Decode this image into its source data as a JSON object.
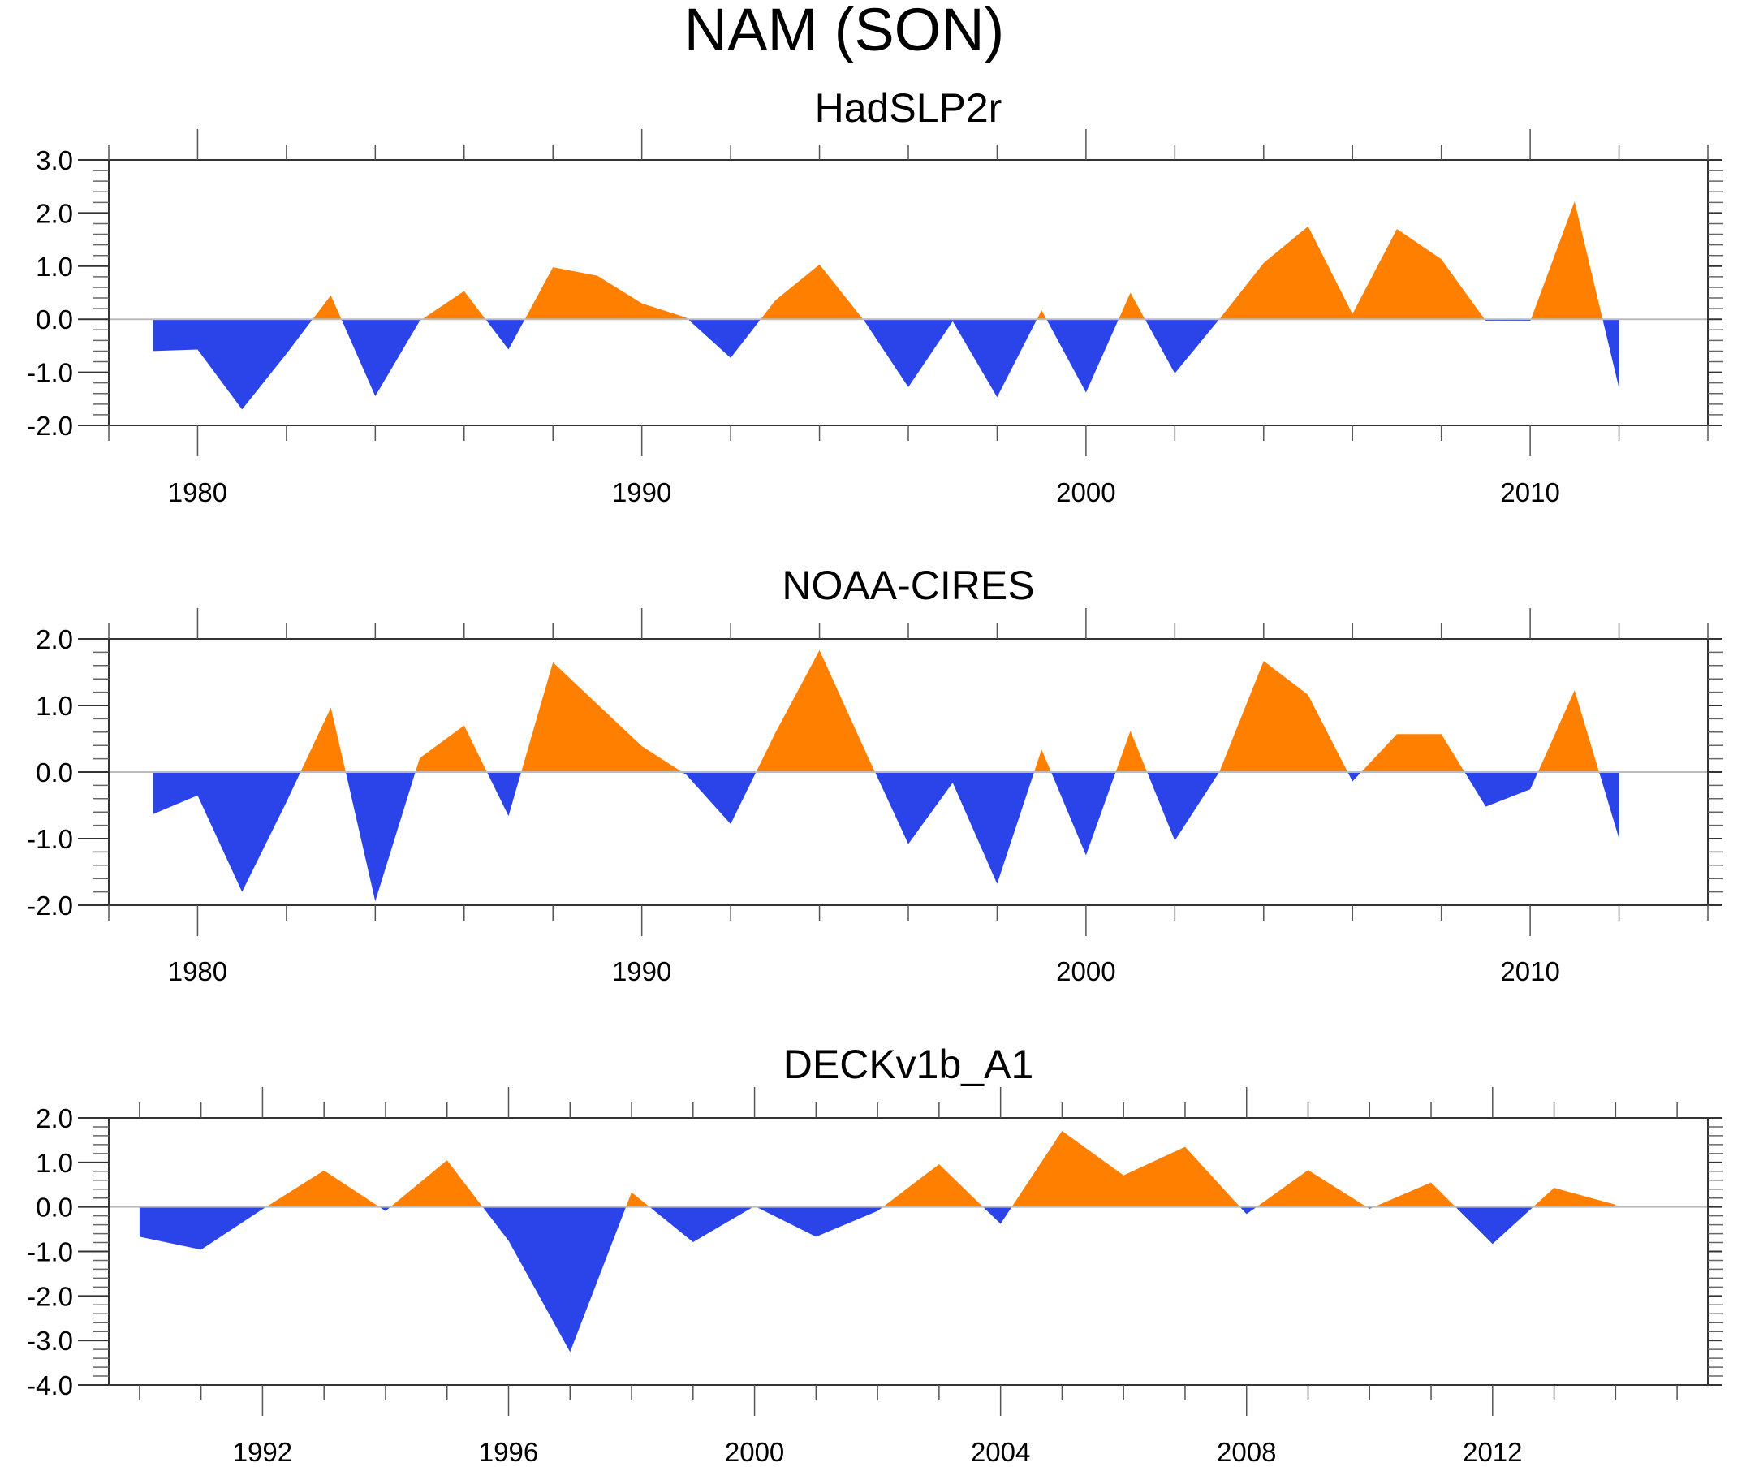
{
  "chart_data": {
    "title": "NAM (SON)",
    "colors": {
      "positive": "#ff8000",
      "negative": "#2a44ea",
      "axis": "#333333",
      "zero_line": "#bbbbbb"
    },
    "panels": [
      {
        "type": "area",
        "title": "HadSLP2r",
        "xlabel": "",
        "ylabel": "",
        "xlim": [
          1978,
          2014
        ],
        "ylim": [
          -2.0,
          3.0
        ],
        "yticks": [
          3.0,
          2.0,
          1.0,
          0.0,
          -1.0,
          -2.0
        ],
        "ytick_labels": [
          "3.0",
          "2.0",
          "1.0",
          "0.0",
          "-1.0",
          "-2.0"
        ],
        "y_minor_step": 0.2,
        "xticks_major": [
          1980,
          1990,
          2000,
          2010
        ],
        "xtick_labels": [
          "1980",
          "1990",
          "2000",
          "2010"
        ],
        "x_minor_step": 2,
        "x": [
          1979,
          1980,
          1981,
          1982,
          1983,
          1984,
          1985,
          1986,
          1987,
          1988,
          1989,
          1990,
          1991,
          1992,
          1993,
          1994,
          1995,
          1996,
          1997,
          1998,
          1999,
          2000,
          2001,
          2002,
          2003,
          2004,
          2005,
          2006,
          2007,
          2008,
          2009,
          2010,
          2011,
          2012
        ],
        "values": [
          -0.6,
          -0.57,
          -1.7,
          -0.65,
          0.45,
          -1.45,
          -0.03,
          0.53,
          -0.57,
          0.98,
          0.82,
          0.3,
          0.03,
          -0.73,
          0.35,
          1.03,
          -0.02,
          -1.28,
          -0.04,
          -1.47,
          0.17,
          -1.38,
          0.5,
          -1.02,
          0.0,
          1.06,
          1.75,
          0.1,
          1.7,
          1.13,
          -0.03,
          -0.04,
          2.22,
          -1.3
        ]
      },
      {
        "type": "area",
        "title": "NOAA-CIRES",
        "xlabel": "",
        "ylabel": "",
        "xlim": [
          1978,
          2014
        ],
        "ylim": [
          -2.0,
          2.0
        ],
        "yticks": [
          2.0,
          1.0,
          0.0,
          -1.0,
          -2.0
        ],
        "ytick_labels": [
          "2.0",
          "1.0",
          "0.0",
          "-1.0",
          "-2.0"
        ],
        "y_minor_step": 0.2,
        "xticks_major": [
          1980,
          1990,
          2000,
          2010
        ],
        "xtick_labels": [
          "1980",
          "1990",
          "2000",
          "2010"
        ],
        "x_minor_step": 2,
        "x": [
          1979,
          1980,
          1981,
          1982,
          1983,
          1984,
          1985,
          1986,
          1987,
          1988,
          1989,
          1990,
          1991,
          1992,
          1993,
          1994,
          1995,
          1996,
          1997,
          1998,
          1999,
          2000,
          2001,
          2002,
          2003,
          2004,
          2005,
          2006,
          2007,
          2008,
          2009,
          2010,
          2011,
          2012
        ],
        "values": [
          -0.63,
          -0.35,
          -1.8,
          -0.45,
          0.97,
          -1.94,
          0.21,
          0.7,
          -0.66,
          1.65,
          1.02,
          0.39,
          -0.04,
          -0.78,
          0.58,
          1.83,
          0.36,
          -1.08,
          -0.16,
          -1.68,
          0.34,
          -1.25,
          0.62,
          -1.03,
          0.0,
          1.67,
          1.16,
          -0.14,
          0.57,
          0.57,
          -0.52,
          -0.26,
          1.23,
          -1.0
        ]
      },
      {
        "type": "area",
        "title": "DECKv1b_A1",
        "xlabel": "",
        "ylabel": "",
        "xlim": [
          1989.5,
          2015.5
        ],
        "ylim": [
          -4.0,
          2.0
        ],
        "yticks": [
          2.0,
          1.0,
          0.0,
          -1.0,
          -2.0,
          -3.0,
          -4.0
        ],
        "ytick_labels": [
          "2.0",
          "1.0",
          "0.0",
          "-1.0",
          "-2.0",
          "-3.0",
          "-4.0"
        ],
        "y_minor_step": 0.2,
        "xticks_major": [
          1992,
          1996,
          2000,
          2004,
          2008,
          2012
        ],
        "xtick_labels": [
          "1992",
          "1996",
          "2000",
          "2004",
          "2008",
          "2012"
        ],
        "x_minor_step": 1,
        "x": [
          1990,
          1991,
          1992,
          1993,
          1994,
          1995,
          1996,
          1997,
          1998,
          1999,
          2000,
          2001,
          2002,
          2003,
          2004,
          2005,
          2006,
          2007,
          2008,
          2009,
          2010,
          2011,
          2012,
          2013,
          2014
        ],
        "values": [
          -0.67,
          -0.96,
          -0.05,
          0.82,
          -0.09,
          1.05,
          -0.76,
          -3.26,
          0.33,
          -0.79,
          0.02,
          -0.67,
          -0.09,
          0.96,
          -0.38,
          1.71,
          0.71,
          1.35,
          -0.16,
          0.83,
          -0.04,
          0.55,
          -0.83,
          0.43,
          0.05
        ]
      }
    ]
  }
}
